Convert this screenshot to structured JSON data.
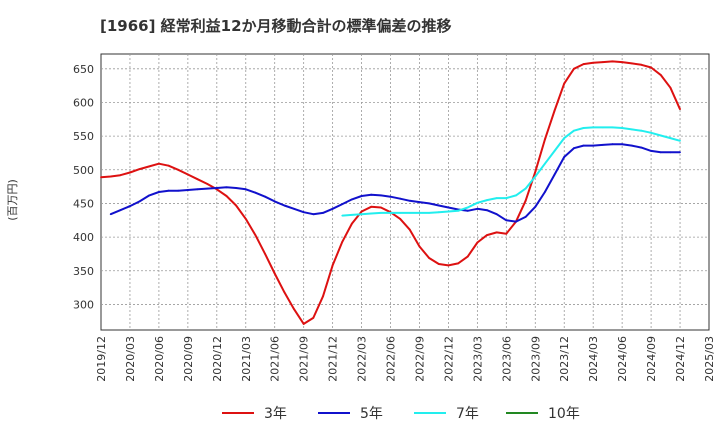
{
  "chart_data": {
    "type": "line",
    "title": "[1966]  経常利益12か月移動合計の標準偏差の推移",
    "ylabel": "(百万円)",
    "xlabel": "",
    "ylim": [
      262,
      672
    ],
    "yticks": [
      300,
      350,
      400,
      450,
      500,
      550,
      600,
      650
    ],
    "x_tick_labels": [
      "2019/12",
      "2020/03",
      "2020/06",
      "2020/09",
      "2020/12",
      "2021/03",
      "2021/06",
      "2021/09",
      "2021/12",
      "2022/03",
      "2022/06",
      "2022/09",
      "2022/12",
      "2023/03",
      "2023/06",
      "2023/09",
      "2023/12",
      "2024/03",
      "2024/06",
      "2024/09",
      "2024/12",
      "2025/03"
    ],
    "grid": true,
    "legend_position": "bottom",
    "series": [
      {
        "name": "3年",
        "color": "#dd1111",
        "points": [
          [
            "2019/12",
            489
          ],
          [
            "2020/01",
            490
          ],
          [
            "2020/02",
            492
          ],
          [
            "2020/03",
            496
          ],
          [
            "2020/04",
            501
          ],
          [
            "2020/05",
            505
          ],
          [
            "2020/06",
            509
          ],
          [
            "2020/07",
            506
          ],
          [
            "2020/08",
            500
          ],
          [
            "2020/09",
            493
          ],
          [
            "2020/10",
            486
          ],
          [
            "2020/11",
            479
          ],
          [
            "2020/12",
            471
          ],
          [
            "2021/01",
            461
          ],
          [
            "2021/02",
            447
          ],
          [
            "2021/03",
            427
          ],
          [
            "2021/04",
            403
          ],
          [
            "2021/05",
            375
          ],
          [
            "2021/06",
            346
          ],
          [
            "2021/07",
            318
          ],
          [
            "2021/08",
            293
          ],
          [
            "2021/09",
            271
          ],
          [
            "2021/10",
            280
          ],
          [
            "2021/11",
            312
          ],
          [
            "2021/12",
            358
          ],
          [
            "2022/01",
            393
          ],
          [
            "2022/02",
            420
          ],
          [
            "2022/03",
            438
          ],
          [
            "2022/04",
            445
          ],
          [
            "2022/05",
            444
          ],
          [
            "2022/06",
            437
          ],
          [
            "2022/07",
            427
          ],
          [
            "2022/08",
            411
          ],
          [
            "2022/09",
            386
          ],
          [
            "2022/10",
            369
          ],
          [
            "2022/11",
            360
          ],
          [
            "2022/12",
            358
          ],
          [
            "2023/01",
            361
          ],
          [
            "2023/02",
            371
          ],
          [
            "2023/03",
            392
          ],
          [
            "2023/04",
            403
          ],
          [
            "2023/05",
            407
          ],
          [
            "2023/06",
            405
          ],
          [
            "2023/07",
            423
          ],
          [
            "2023/08",
            454
          ],
          [
            "2023/09",
            497
          ],
          [
            "2023/10",
            545
          ],
          [
            "2023/11",
            588
          ],
          [
            "2023/12",
            628
          ],
          [
            "2024/01",
            650
          ],
          [
            "2024/02",
            657
          ],
          [
            "2024/03",
            659
          ],
          [
            "2024/04",
            660
          ],
          [
            "2024/05",
            661
          ],
          [
            "2024/06",
            660
          ],
          [
            "2024/07",
            658
          ],
          [
            "2024/08",
            656
          ],
          [
            "2024/09",
            652
          ],
          [
            "2024/10",
            641
          ],
          [
            "2024/11",
            622
          ],
          [
            "2024/12",
            590
          ]
        ]
      },
      {
        "name": "5年",
        "color": "#1111cc",
        "points": [
          [
            "2020/01",
            434
          ],
          [
            "2020/02",
            440
          ],
          [
            "2020/03",
            446
          ],
          [
            "2020/04",
            453
          ],
          [
            "2020/05",
            462
          ],
          [
            "2020/06",
            467
          ],
          [
            "2020/07",
            469
          ],
          [
            "2020/08",
            469
          ],
          [
            "2020/09",
            470
          ],
          [
            "2020/10",
            471
          ],
          [
            "2020/11",
            472
          ],
          [
            "2020/12",
            473
          ],
          [
            "2021/01",
            474
          ],
          [
            "2021/02",
            473
          ],
          [
            "2021/03",
            471
          ],
          [
            "2021/04",
            466
          ],
          [
            "2021/05",
            460
          ],
          [
            "2021/06",
            453
          ],
          [
            "2021/07",
            447
          ],
          [
            "2021/08",
            442
          ],
          [
            "2021/09",
            437
          ],
          [
            "2021/10",
            434
          ],
          [
            "2021/11",
            436
          ],
          [
            "2021/12",
            442
          ],
          [
            "2022/01",
            449
          ],
          [
            "2022/02",
            456
          ],
          [
            "2022/03",
            461
          ],
          [
            "2022/04",
            463
          ],
          [
            "2022/05",
            462
          ],
          [
            "2022/06",
            460
          ],
          [
            "2022/07",
            457
          ],
          [
            "2022/08",
            454
          ],
          [
            "2022/09",
            452
          ],
          [
            "2022/10",
            450
          ],
          [
            "2022/11",
            447
          ],
          [
            "2022/12",
            444
          ],
          [
            "2023/01",
            441
          ],
          [
            "2023/02",
            439
          ],
          [
            "2023/03",
            442
          ],
          [
            "2023/04",
            440
          ],
          [
            "2023/05",
            434
          ],
          [
            "2023/06",
            425
          ],
          [
            "2023/07",
            423
          ],
          [
            "2023/08",
            430
          ],
          [
            "2023/09",
            445
          ],
          [
            "2023/10",
            467
          ],
          [
            "2023/11",
            493
          ],
          [
            "2023/12",
            519
          ],
          [
            "2024/01",
            532
          ],
          [
            "2024/02",
            536
          ],
          [
            "2024/03",
            536
          ],
          [
            "2024/04",
            537
          ],
          [
            "2024/05",
            538
          ],
          [
            "2024/06",
            538
          ],
          [
            "2024/07",
            536
          ],
          [
            "2024/08",
            533
          ],
          [
            "2024/09",
            528
          ],
          [
            "2024/10",
            526
          ],
          [
            "2024/11",
            526
          ],
          [
            "2024/12",
            526
          ]
        ]
      },
      {
        "name": "7年",
        "color": "#22eeee",
        "points": [
          [
            "2022/01",
            432
          ],
          [
            "2022/02",
            433
          ],
          [
            "2022/03",
            434
          ],
          [
            "2022/04",
            435
          ],
          [
            "2022/05",
            436
          ],
          [
            "2022/06",
            436
          ],
          [
            "2022/07",
            436
          ],
          [
            "2022/08",
            436
          ],
          [
            "2022/09",
            436
          ],
          [
            "2022/10",
            436
          ],
          [
            "2022/11",
            437
          ],
          [
            "2022/12",
            438
          ],
          [
            "2023/01",
            439
          ],
          [
            "2023/02",
            444
          ],
          [
            "2023/03",
            451
          ],
          [
            "2023/04",
            455
          ],
          [
            "2023/05",
            458
          ],
          [
            "2023/06",
            458
          ],
          [
            "2023/07",
            462
          ],
          [
            "2023/08",
            472
          ],
          [
            "2023/09",
            490
          ],
          [
            "2023/10",
            509
          ],
          [
            "2023/11",
            528
          ],
          [
            "2023/12",
            547
          ],
          [
            "2024/01",
            558
          ],
          [
            "2024/02",
            562
          ],
          [
            "2024/03",
            563
          ],
          [
            "2024/04",
            563
          ],
          [
            "2024/05",
            563
          ],
          [
            "2024/06",
            562
          ],
          [
            "2024/07",
            560
          ],
          [
            "2024/08",
            558
          ],
          [
            "2024/09",
            555
          ],
          [
            "2024/10",
            551
          ],
          [
            "2024/11",
            547
          ],
          [
            "2024/12",
            543
          ]
        ]
      },
      {
        "name": "10年",
        "color": "#228822",
        "points": []
      }
    ]
  }
}
